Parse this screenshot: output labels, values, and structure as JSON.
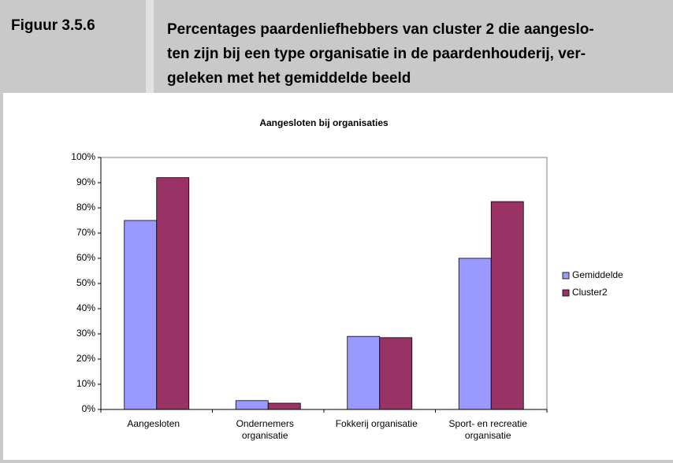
{
  "header": {
    "figure": "Figuur 3.5.6",
    "caption_lines": [
      "Percentages paardenliefhebbers van cluster 2 die aangeslo-",
      "ten zijn bij een type organisatie in de paardenhouderij, ver-",
      "geleken met het gemiddelde beeld"
    ]
  },
  "chart_data": {
    "type": "bar",
    "title": "Aangesloten bij organisaties",
    "categories": [
      "Aangesloten",
      "Ondernemers organisatie",
      "Fokkerij organisatie",
      "Sport- en recreatie organisatie"
    ],
    "series": [
      {
        "name": "Gemiddelde",
        "color": "#9999ff",
        "values": [
          75,
          3.5,
          29,
          60
        ]
      },
      {
        "name": "Cluster2",
        "color": "#993366",
        "values": [
          92,
          2.5,
          28.5,
          82.5
        ]
      }
    ],
    "ylim": [
      0,
      100
    ],
    "yticks": [
      {
        "value": 0,
        "label": "0%"
      },
      {
        "value": 10,
        "label": "10%"
      },
      {
        "value": 20,
        "label": "20%"
      },
      {
        "value": 30,
        "label": "30%"
      },
      {
        "value": 40,
        "label": "40%"
      },
      {
        "value": 50,
        "label": "50%"
      },
      {
        "value": 60,
        "label": "60%"
      },
      {
        "value": 70,
        "label": "70%"
      },
      {
        "value": 80,
        "label": "80%"
      },
      {
        "value": 90,
        "label": "90%"
      },
      {
        "value": 100,
        "label": "100%"
      }
    ],
    "grid": false,
    "legend": "right"
  }
}
